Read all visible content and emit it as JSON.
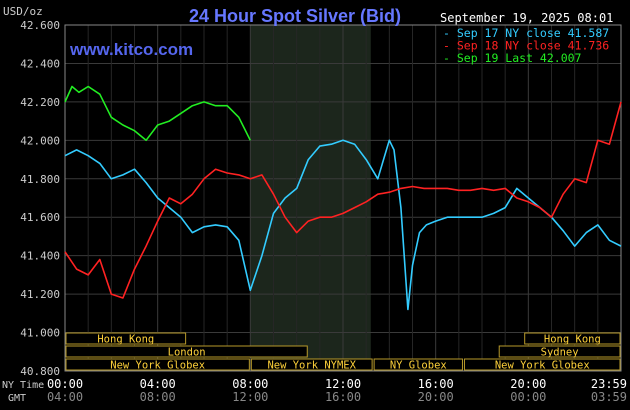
{
  "chart_data": {
    "type": "line",
    "title": "24 Hour Spot Silver (Bid)",
    "watermark": "www.kitco.com",
    "y_unit_label": "USD/oz",
    "date_label": "September 19, 2025 08:01",
    "ylim": [
      40.8,
      42.6
    ],
    "y_ticks": [
      "42.600",
      "42.400",
      "42.200",
      "42.000",
      "41.800",
      "41.600",
      "41.400",
      "41.200",
      "41.000",
      "40.800"
    ],
    "xlim_hours": [
      0,
      24
    ],
    "x_ticks_ny": [
      "00:00",
      "04:00",
      "08:00",
      "12:00",
      "16:00",
      "20:00",
      "23:59"
    ],
    "x_ticks_gmt": [
      "04:00",
      "08:00",
      "12:00",
      "16:00",
      "20:00",
      "00:00",
      "03:59"
    ],
    "x_row_labels": [
      "NY Time",
      "GMT"
    ],
    "grid": true,
    "legend_placement": "top-right",
    "highlight_hours": [
      8,
      13.2
    ],
    "series": [
      {
        "name": "Sep 17 NY close 41.587",
        "color": "#33ccff",
        "x": [
          0,
          0.5,
          1,
          1.5,
          2,
          2.5,
          3,
          3.5,
          4,
          4.5,
          5,
          5.5,
          6,
          6.5,
          7,
          7.5,
          8,
          8.5,
          9,
          9.5,
          10,
          10.5,
          11,
          11.5,
          12,
          12.5,
          13,
          13.5,
          14,
          14.2,
          14.5,
          14.8,
          15,
          15.3,
          15.6,
          16,
          16.5,
          17,
          17.5,
          18,
          18.5,
          19,
          19.5,
          20,
          20.5,
          21,
          21.5,
          22,
          22.5,
          23,
          23.5,
          24
        ],
        "values": [
          41.92,
          41.95,
          41.92,
          41.88,
          41.8,
          41.82,
          41.85,
          41.78,
          41.7,
          41.65,
          41.6,
          41.52,
          41.55,
          41.56,
          41.55,
          41.48,
          41.22,
          41.4,
          41.62,
          41.7,
          41.75,
          41.9,
          41.97,
          41.98,
          42.0,
          41.98,
          41.9,
          41.8,
          42.0,
          41.95,
          41.65,
          41.12,
          41.35,
          41.52,
          41.56,
          41.58,
          41.6,
          41.6,
          41.6,
          41.6,
          41.62,
          41.65,
          41.75,
          41.7,
          41.65,
          41.6,
          41.53,
          41.45,
          41.52,
          41.56,
          41.48,
          41.45
        ]
      },
      {
        "name": "Sep 18 NY close 41.736",
        "color": "#ff2222",
        "x": [
          0,
          0.5,
          1,
          1.5,
          2,
          2.5,
          3,
          3.5,
          4,
          4.5,
          5,
          5.5,
          6,
          6.5,
          7,
          7.5,
          8,
          8.5,
          9,
          9.5,
          10,
          10.5,
          11,
          11.5,
          12,
          12.5,
          13,
          13.5,
          14,
          14.5,
          15,
          15.5,
          16,
          16.5,
          17,
          17.5,
          18,
          18.5,
          19,
          19.5,
          20,
          20.5,
          21,
          21.5,
          22,
          22.5,
          23,
          23.5,
          24
        ],
        "values": [
          41.42,
          41.33,
          41.3,
          41.38,
          41.2,
          41.18,
          41.33,
          41.45,
          41.58,
          41.7,
          41.67,
          41.72,
          41.8,
          41.85,
          41.83,
          41.82,
          41.8,
          41.82,
          41.72,
          41.6,
          41.52,
          41.58,
          41.6,
          41.6,
          41.62,
          41.65,
          41.68,
          41.72,
          41.73,
          41.75,
          41.76,
          41.75,
          41.75,
          41.75,
          41.74,
          41.74,
          41.75,
          41.74,
          41.75,
          41.7,
          41.68,
          41.65,
          41.6,
          41.72,
          41.8,
          41.78,
          42.0,
          41.98,
          42.2
        ]
      },
      {
        "name": "Sep 19 Last 42.007",
        "color": "#22ee22",
        "x": [
          0,
          0.3,
          0.6,
          1,
          1.5,
          2,
          2.5,
          3,
          3.5,
          4,
          4.5,
          5,
          5.5,
          6,
          6.5,
          7,
          7.5,
          8
        ],
        "values": [
          42.2,
          42.28,
          42.25,
          42.28,
          42.24,
          42.12,
          42.08,
          42.05,
          42.0,
          42.08,
          42.1,
          42.14,
          42.18,
          42.2,
          42.18,
          42.18,
          42.12,
          42.0
        ]
      }
    ],
    "sessions": [
      {
        "label": "Hong Kong",
        "start": 0,
        "end": 5.25,
        "row": 0
      },
      {
        "label": "Hong Kong",
        "start": 19.8,
        "end": 24,
        "row": 0
      },
      {
        "label": "London",
        "start": 0,
        "end": 10.5,
        "row": 1
      },
      {
        "label": "Sydney",
        "start": 18.7,
        "end": 24,
        "row": 1
      },
      {
        "label": "New York Globex",
        "start": 0,
        "end": 8,
        "row": 2
      },
      {
        "label": "New York NYMEX",
        "start": 8,
        "end": 13.3,
        "row": 2
      },
      {
        "label": "NY Globex",
        "start": 13.3,
        "end": 17.2,
        "row": 2
      },
      {
        "label": "New York Globex",
        "start": 17.2,
        "end": 24,
        "row": 2
      }
    ]
  }
}
